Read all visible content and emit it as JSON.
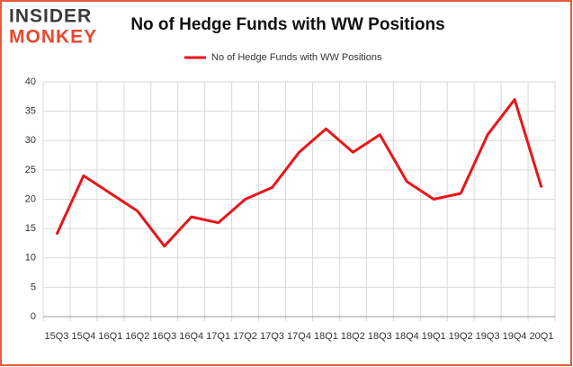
{
  "logo": {
    "top": "INSIDER",
    "bottom": "MONKEY"
  },
  "chart_data": {
    "type": "line",
    "title": "No of Hedge Funds with WW Positions",
    "categories": [
      "15Q3",
      "15Q4",
      "16Q1",
      "16Q2",
      "16Q3",
      "16Q4",
      "17Q1",
      "17Q2",
      "17Q3",
      "17Q4",
      "18Q1",
      "18Q2",
      "18Q3",
      "18Q4",
      "19Q1",
      "19Q2",
      "19Q3",
      "19Q4",
      "20Q1"
    ],
    "series": [
      {
        "name": "No of Hedge Funds with WW Positions",
        "color": "#e8161a",
        "values": [
          14,
          24,
          21,
          18,
          12,
          17,
          16,
          20,
          22,
          28,
          32,
          28,
          31,
          23,
          20,
          21,
          31,
          37,
          22
        ]
      }
    ],
    "ylim": [
      0,
      40
    ],
    "yticks": [
      0,
      5,
      10,
      15,
      20,
      25,
      30,
      35,
      40
    ],
    "grid": true,
    "legend": "top"
  }
}
